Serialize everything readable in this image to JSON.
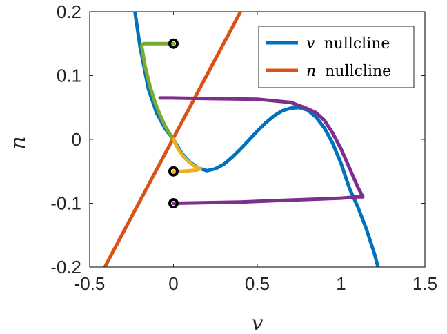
{
  "chart_data": {
    "type": "line",
    "title": "",
    "xlabel": "v",
    "ylabel": "n",
    "xlim": [
      -0.5,
      1.5
    ],
    "ylim": [
      -0.2,
      0.2
    ],
    "x_ticks": [
      "-0.5",
      "0",
      "0.5",
      "1",
      "1.5"
    ],
    "y_ticks": [
      "0.2",
      "0.1",
      "0",
      "-0.1",
      "-0.2"
    ],
    "grid": false,
    "legend_position": "top-right",
    "legend": [
      {
        "var": "v",
        "text": "nullcline",
        "color": "#0072BD"
      },
      {
        "var": "n",
        "text": "nullcline",
        "color": "#D95319"
      }
    ],
    "v_nullcline": {
      "color": "#0072BD",
      "x": [
        -0.23,
        -0.2,
        -0.15,
        -0.1,
        -0.05,
        0,
        0.05,
        0.1,
        0.15,
        0.2,
        0.25,
        0.3,
        0.35,
        0.4,
        0.45,
        0.5,
        0.55,
        0.6,
        0.65,
        0.7,
        0.75,
        0.8,
        0.85,
        0.9,
        0.95,
        1.0,
        1.05,
        1.1,
        1.15,
        1.2,
        1.22
      ],
      "y": [
        0.2,
        0.146,
        0.079,
        0.041,
        0.017,
        0.0,
        -0.022,
        -0.036,
        -0.045,
        -0.049,
        -0.046,
        -0.039,
        -0.028,
        -0.015,
        -0.001,
        0.013,
        0.026,
        0.037,
        0.045,
        0.049,
        0.05,
        0.046,
        0.035,
        0.018,
        -0.006,
        -0.038,
        -0.077,
        -0.106,
        -0.14,
        -0.18,
        -0.2
      ]
    },
    "n_nullcline": {
      "color": "#D95319",
      "x": [
        -0.41,
        0.4
      ],
      "y": [
        -0.2,
        0.2
      ]
    },
    "trajectories": [
      {
        "color": "#77AC30",
        "x": [
          0,
          -0.05,
          -0.1,
          -0.15,
          -0.18,
          -0.19,
          -0.17,
          -0.14,
          -0.11,
          -0.08,
          -0.05,
          -0.02,
          0
        ],
        "y": [
          0.15,
          0.15,
          0.15,
          0.15,
          0.15,
          0.147,
          0.115,
          0.083,
          0.058,
          0.038,
          0.021,
          0.008,
          0.0
        ]
      },
      {
        "color": "#EDB120",
        "x": [
          0,
          0.05,
          0.1,
          0.14,
          0.16,
          0.15,
          0.12,
          0.09,
          0.06,
          0.03,
          0.01,
          0
        ],
        "y": [
          -0.05,
          -0.05,
          -0.049,
          -0.048,
          -0.046,
          -0.045,
          -0.041,
          -0.035,
          -0.027,
          -0.016,
          -0.006,
          0.0
        ]
      },
      {
        "color": "#7E2F8E",
        "x": [
          0,
          0.2,
          0.4,
          0.6,
          0.8,
          1.0,
          1.1,
          1.13,
          1.1,
          1.05,
          1.0,
          0.95,
          0.9,
          0.85,
          0.8,
          0.7,
          0.5,
          0.2,
          0,
          -0.08
        ],
        "y": [
          -0.1,
          -0.099,
          -0.098,
          -0.096,
          -0.094,
          -0.092,
          -0.09,
          -0.09,
          -0.075,
          -0.045,
          -0.015,
          0.01,
          0.03,
          0.042,
          0.048,
          0.058,
          0.063,
          0.064,
          0.065,
          0.065
        ]
      }
    ],
    "initial_points": {
      "color": "#000000",
      "x": [
        0,
        0,
        0
      ],
      "y": [
        0.15,
        -0.05,
        -0.1
      ]
    }
  }
}
